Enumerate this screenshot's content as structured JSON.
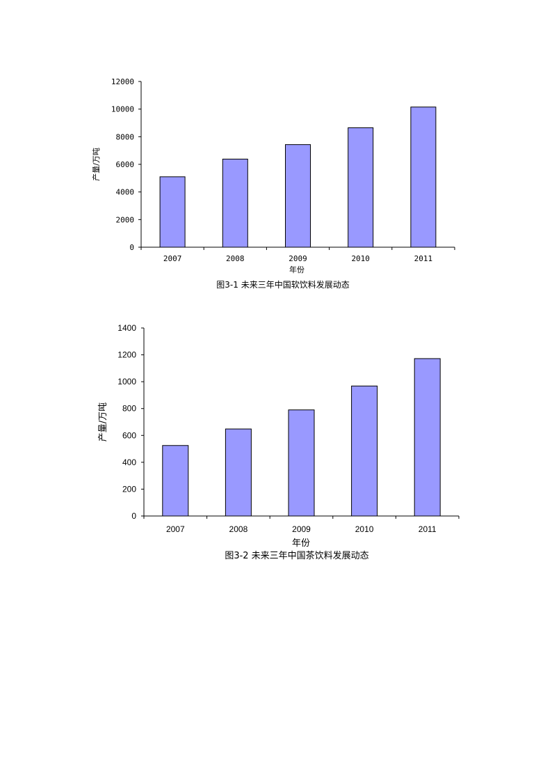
{
  "chart_data": [
    {
      "type": "bar",
      "categories": [
        "2007",
        "2008",
        "2009",
        "2010",
        "2011"
      ],
      "values": [
        5100,
        6380,
        7430,
        8650,
        10150
      ],
      "ylim": [
        0,
        12000
      ],
      "yticks": [
        0,
        2000,
        4000,
        6000,
        8000,
        10000,
        12000
      ],
      "ylabel": "产量/万吨",
      "xlabel": "年份",
      "caption": "图3-1 未来三年中国软饮料发展动态",
      "grid": false,
      "bar_color": "#9999ff",
      "edge_color": "#000000"
    },
    {
      "type": "bar",
      "categories": [
        "2007",
        "2008",
        "2009",
        "2010",
        "2011"
      ],
      "values": [
        525,
        648,
        790,
        968,
        1172
      ],
      "ylim": [
        0,
        1400
      ],
      "yticks": [
        0,
        200,
        400,
        600,
        800,
        1000,
        1200,
        1400
      ],
      "ylabel": "产量/万吨",
      "xlabel": "年份",
      "caption": "图3-2 未来三年中国茶饮料发展动态",
      "grid": false,
      "bar_color": "#9999ff",
      "edge_color": "#000000"
    }
  ]
}
